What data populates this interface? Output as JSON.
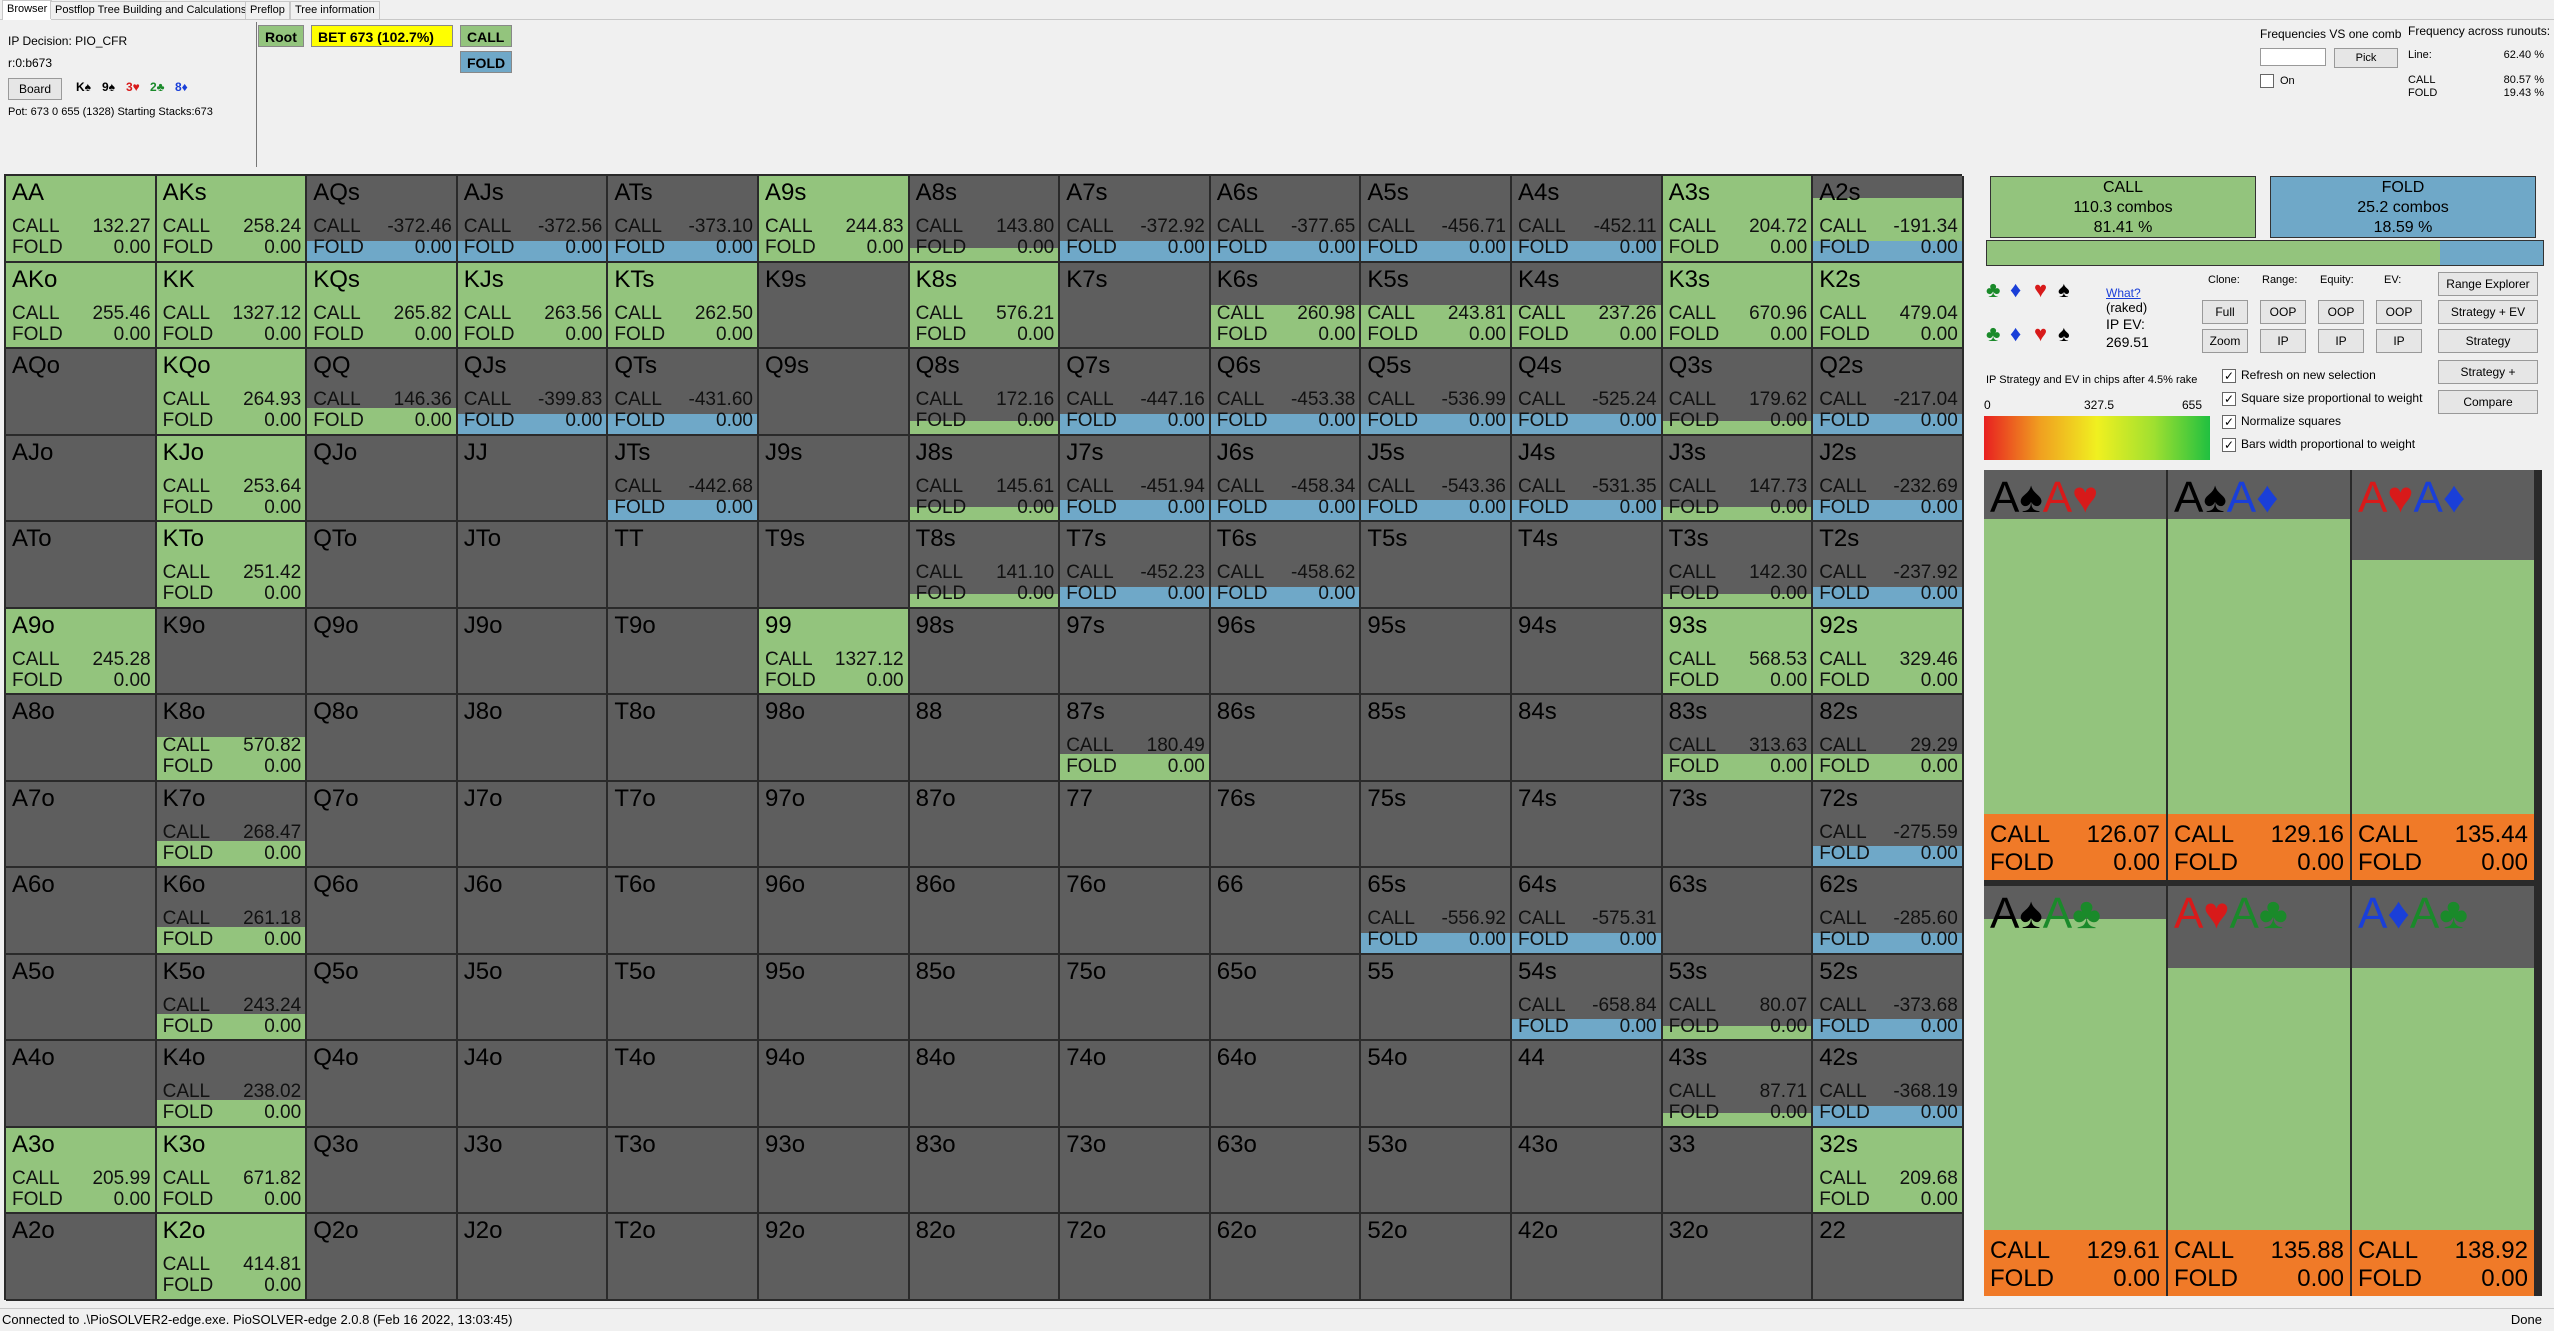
{
  "tabs": [
    "Browser",
    "Postflop Tree Building and Calculations",
    "Preflop",
    "Tree information"
  ],
  "info": {
    "decision": "IP Decision:  PIO_CFR",
    "node": "r:0:b673",
    "board_btn": "Board",
    "pot": "Pot: 673 0 655 (1328) Starting Stacks:673",
    "board": [
      {
        "rank": "K",
        "suit": "♠",
        "color": "#000"
      },
      {
        "rank": "9",
        "suit": "♠",
        "color": "#000"
      },
      {
        "rank": "3",
        "suit": "♥",
        "color": "#d81a1a"
      },
      {
        "rank": "2",
        "suit": "♣",
        "color": "#1a8a2a"
      },
      {
        "rank": "8",
        "suit": "♦",
        "color": "#1a3fd8"
      }
    ]
  },
  "tree": {
    "root": "Root",
    "bet": "BET 673 (102.7%)",
    "call": "CALL",
    "fold": "FOLD"
  },
  "freq": {
    "title": "Frequencies VS one comb",
    "pick": "Pick",
    "on": "On",
    "across_title": "Frequency across runouts:",
    "line_label": "Line:",
    "line_value": "62.40 %",
    "call_label": "CALL",
    "call_value": "80.57 %",
    "fold_label": "FOLD",
    "fold_value": "19.43 %"
  },
  "colors": {
    "call": "#93c47d",
    "fold": "#6fa8c8",
    "empty": "#5e5e5e",
    "pair_blocked": "#a6a6a6",
    "orange": "#f07a28"
  },
  "grid": [
    [
      "AA",
      "CALL",
      "132.27",
      "FOLD",
      "0.00",
      1,
      0
    ],
    [
      "AKs",
      "CALL",
      "258.24",
      "FOLD",
      "0.00",
      1,
      0
    ],
    [
      "AQs",
      "CALL",
      "-372.46",
      "FOLD",
      "0.00",
      0,
      1
    ],
    [
      "AJs",
      "CALL",
      "-372.56",
      "FOLD",
      "0.00",
      0,
      1
    ],
    [
      "ATs",
      "CALL",
      "-373.10",
      "FOLD",
      "0.00",
      0,
      1
    ],
    [
      "A9s",
      "CALL",
      "244.83",
      "FOLD",
      "0.00",
      1,
      0
    ],
    [
      "A8s",
      "CALL",
      "143.80",
      "FOLD",
      "0.00",
      0.15,
      0
    ],
    [
      "A7s",
      "CALL",
      "-372.92",
      "FOLD",
      "0.00",
      0,
      1
    ],
    [
      "A6s",
      "CALL",
      "-377.65",
      "FOLD",
      "0.00",
      0,
      1
    ],
    [
      "A5s",
      "CALL",
      "-456.71",
      "FOLD",
      "0.00",
      0,
      1
    ],
    [
      "A4s",
      "CALL",
      "-452.11",
      "FOLD",
      "0.00",
      0,
      1
    ],
    [
      "A3s",
      "CALL",
      "204.72",
      "FOLD",
      "0.00",
      1,
      0
    ],
    [
      "A2s",
      "CALL",
      "-191.34",
      "FOLD",
      "0.00",
      0.5,
      1
    ],
    [
      "AKo",
      "CALL",
      "255.46",
      "FOLD",
      "0.00",
      1,
      0
    ],
    [
      "KK",
      "CALL",
      "1327.12",
      "FOLD",
      "0.00",
      1,
      0
    ],
    [
      "KQs",
      "CALL",
      "265.82",
      "FOLD",
      "0.00",
      1,
      0
    ],
    [
      "KJs",
      "CALL",
      "263.56",
      "FOLD",
      "0.00",
      1,
      0
    ],
    [
      "KTs",
      "CALL",
      "262.50",
      "FOLD",
      "0.00",
      1,
      0
    ],
    [
      "K9s",
      "",
      "",
      "",
      "",
      0,
      0
    ],
    [
      "K8s",
      "CALL",
      "576.21",
      "FOLD",
      "0.00",
      1,
      0
    ],
    [
      "K7s",
      "",
      "",
      "",
      "",
      0,
      0
    ],
    [
      "K6s",
      "CALL",
      "260.98",
      "FOLD",
      "0.00",
      0.5,
      0
    ],
    [
      "K5s",
      "CALL",
      "243.81",
      "FOLD",
      "0.00",
      0.5,
      0
    ],
    [
      "K4s",
      "CALL",
      "237.26",
      "FOLD",
      "0.00",
      0.5,
      0
    ],
    [
      "K3s",
      "CALL",
      "670.96",
      "FOLD",
      "0.00",
      1,
      0
    ],
    [
      "K2s",
      "CALL",
      "479.04",
      "FOLD",
      "0.00",
      1,
      0
    ],
    [
      "AQo",
      "",
      "",
      "",
      "",
      0,
      0
    ],
    [
      "KQo",
      "CALL",
      "264.93",
      "FOLD",
      "0.00",
      1,
      0
    ],
    [
      "QQ",
      "CALL",
      "146.36",
      "FOLD",
      "0.00",
      0.3,
      0
    ],
    [
      "QJs",
      "CALL",
      "-399.83",
      "FOLD",
      "0.00",
      0,
      1
    ],
    [
      "QTs",
      "CALL",
      "-431.60",
      "FOLD",
      "0.00",
      0,
      1
    ],
    [
      "Q9s",
      "",
      "",
      "",
      "",
      0,
      0
    ],
    [
      "Q8s",
      "CALL",
      "172.16",
      "FOLD",
      "0.00",
      0.15,
      0
    ],
    [
      "Q7s",
      "CALL",
      "-447.16",
      "FOLD",
      "0.00",
      0,
      1
    ],
    [
      "Q6s",
      "CALL",
      "-453.38",
      "FOLD",
      "0.00",
      0,
      1
    ],
    [
      "Q5s",
      "CALL",
      "-536.99",
      "FOLD",
      "0.00",
      0,
      1
    ],
    [
      "Q4s",
      "CALL",
      "-525.24",
      "FOLD",
      "0.00",
      0,
      1
    ],
    [
      "Q3s",
      "CALL",
      "179.62",
      "FOLD",
      "0.00",
      0.15,
      0
    ],
    [
      "Q2s",
      "CALL",
      "-217.04",
      "FOLD",
      "0.00",
      0,
      1
    ],
    [
      "AJo",
      "",
      "",
      "",
      "",
      0,
      0
    ],
    [
      "KJo",
      "CALL",
      "253.64",
      "FOLD",
      "0.00",
      1,
      0
    ],
    [
      "QJo",
      "",
      "",
      "",
      "",
      0,
      0
    ],
    [
      "JJ",
      "",
      "",
      "",
      "",
      0,
      0
    ],
    [
      "JTs",
      "CALL",
      "-442.68",
      "FOLD",
      "0.00",
      0,
      1
    ],
    [
      "J9s",
      "",
      "",
      "",
      "",
      0,
      0
    ],
    [
      "J8s",
      "CALL",
      "145.61",
      "FOLD",
      "0.00",
      0.15,
      0
    ],
    [
      "J7s",
      "CALL",
      "-451.94",
      "FOLD",
      "0.00",
      0,
      1
    ],
    [
      "J6s",
      "CALL",
      "-458.34",
      "FOLD",
      "0.00",
      0,
      1
    ],
    [
      "J5s",
      "CALL",
      "-543.36",
      "FOLD",
      "0.00",
      0,
      1
    ],
    [
      "J4s",
      "CALL",
      "-531.35",
      "FOLD",
      "0.00",
      0,
      1
    ],
    [
      "J3s",
      "CALL",
      "147.73",
      "FOLD",
      "0.00",
      0.15,
      0
    ],
    [
      "J2s",
      "CALL",
      "-232.69",
      "FOLD",
      "0.00",
      0,
      1
    ],
    [
      "ATo",
      "",
      "",
      "",
      "",
      0,
      0
    ],
    [
      "KTo",
      "CALL",
      "251.42",
      "FOLD",
      "0.00",
      1,
      0
    ],
    [
      "QTo",
      "",
      "",
      "",
      "",
      0,
      0
    ],
    [
      "JTo",
      "",
      "",
      "",
      "",
      0,
      0
    ],
    [
      "TT",
      "",
      "",
      "",
      "",
      0,
      0
    ],
    [
      "T9s",
      "",
      "",
      "",
      "",
      0,
      0
    ],
    [
      "T8s",
      "CALL",
      "141.10",
      "FOLD",
      "0.00",
      0.15,
      0
    ],
    [
      "T7s",
      "CALL",
      "-452.23",
      "FOLD",
      "0.00",
      0,
      1
    ],
    [
      "T6s",
      "CALL",
      "-458.62",
      "FOLD",
      "0.00",
      0,
      1
    ],
    [
      "T5s",
      "",
      "",
      "",
      "",
      0,
      0
    ],
    [
      "T4s",
      "",
      "",
      "",
      "",
      0,
      0
    ],
    [
      "T3s",
      "CALL",
      "142.30",
      "FOLD",
      "0.00",
      0.15,
      0
    ],
    [
      "T2s",
      "CALL",
      "-237.92",
      "FOLD",
      "0.00",
      0,
      1
    ],
    [
      "A9o",
      "CALL",
      "245.28",
      "FOLD",
      "0.00",
      1,
      0
    ],
    [
      "K9o",
      "",
      "",
      "",
      "",
      0,
      0
    ],
    [
      "Q9o",
      "",
      "",
      "",
      "",
      0,
      0
    ],
    [
      "J9o",
      "",
      "",
      "",
      "",
      0,
      0
    ],
    [
      "T9o",
      "",
      "",
      "",
      "",
      0,
      0
    ],
    [
      "99",
      "CALL",
      "1327.12",
      "FOLD",
      "0.00",
      1,
      0
    ],
    [
      "98s",
      "",
      "",
      "",
      "",
      0,
      0
    ],
    [
      "97s",
      "",
      "",
      "",
      "",
      0,
      0
    ],
    [
      "96s",
      "",
      "",
      "",
      "",
      0,
      0
    ],
    [
      "95s",
      "",
      "",
      "",
      "",
      0,
      0
    ],
    [
      "94s",
      "",
      "",
      "",
      "",
      0,
      0
    ],
    [
      "93s",
      "CALL",
      "568.53",
      "FOLD",
      "0.00",
      1,
      0
    ],
    [
      "92s",
      "CALL",
      "329.46",
      "FOLD",
      "0.00",
      1,
      0
    ],
    [
      "A8o",
      "",
      "",
      "",
      "",
      0,
      0
    ],
    [
      "K8o",
      "CALL",
      "570.82",
      "FOLD",
      "0.00",
      0.5,
      0
    ],
    [
      "Q8o",
      "",
      "",
      "",
      "",
      0,
      0
    ],
    [
      "J8o",
      "",
      "",
      "",
      "",
      0,
      0
    ],
    [
      "T8o",
      "",
      "",
      "",
      "",
      0,
      0
    ],
    [
      "98o",
      "",
      "",
      "",
      "",
      0,
      0
    ],
    [
      "88",
      "",
      "",
      "",
      "",
      0,
      0
    ],
    [
      "87s",
      "CALL",
      "180.49",
      "FOLD",
      "0.00",
      0.3,
      0
    ],
    [
      "86s",
      "",
      "",
      "",
      "",
      0,
      0
    ],
    [
      "85s",
      "",
      "",
      "",
      "",
      0,
      0
    ],
    [
      "84s",
      "",
      "",
      "",
      "",
      0,
      0
    ],
    [
      "83s",
      "CALL",
      "313.63",
      "FOLD",
      "0.00",
      0.3,
      0
    ],
    [
      "82s",
      "CALL",
      "29.29",
      "FOLD",
      "0.00",
      0.3,
      0
    ],
    [
      "A7o",
      "",
      "",
      "",
      "",
      0,
      0
    ],
    [
      "K7o",
      "CALL",
      "268.47",
      "FOLD",
      "0.00",
      0.3,
      0
    ],
    [
      "Q7o",
      "",
      "",
      "",
      "",
      0,
      0
    ],
    [
      "J7o",
      "",
      "",
      "",
      "",
      0,
      0
    ],
    [
      "T7o",
      "",
      "",
      "",
      "",
      0,
      0
    ],
    [
      "97o",
      "",
      "",
      "",
      "",
      0,
      0
    ],
    [
      "87o",
      "",
      "",
      "",
      "",
      0,
      0
    ],
    [
      "77",
      "",
      "",
      "",
      "",
      0,
      0
    ],
    [
      "76s",
      "",
      "",
      "",
      "",
      0,
      0
    ],
    [
      "75s",
      "",
      "",
      "",
      "",
      0,
      0
    ],
    [
      "74s",
      "",
      "",
      "",
      "",
      0,
      0
    ],
    [
      "73s",
      "",
      "",
      "",
      "",
      0,
      0
    ],
    [
      "72s",
      "CALL",
      "-275.59",
      "FOLD",
      "0.00",
      0,
      1
    ],
    [
      "A6o",
      "",
      "",
      "",
      "",
      0,
      0
    ],
    [
      "K6o",
      "CALL",
      "261.18",
      "FOLD",
      "0.00",
      0.3,
      0
    ],
    [
      "Q6o",
      "",
      "",
      "",
      "",
      0,
      0
    ],
    [
      "J6o",
      "",
      "",
      "",
      "",
      0,
      0
    ],
    [
      "T6o",
      "",
      "",
      "",
      "",
      0,
      0
    ],
    [
      "96o",
      "",
      "",
      "",
      "",
      0,
      0
    ],
    [
      "86o",
      "",
      "",
      "",
      "",
      0,
      0
    ],
    [
      "76o",
      "",
      "",
      "",
      "",
      0,
      0
    ],
    [
      "66",
      "",
      "",
      "",
      "",
      0,
      0
    ],
    [
      "65s",
      "CALL",
      "-556.92",
      "FOLD",
      "0.00",
      0,
      1
    ],
    [
      "64s",
      "CALL",
      "-575.31",
      "FOLD",
      "0.00",
      0,
      1
    ],
    [
      "63s",
      "",
      "",
      "",
      "",
      0,
      0
    ],
    [
      "62s",
      "CALL",
      "-285.60",
      "FOLD",
      "0.00",
      0,
      1
    ],
    [
      "A5o",
      "",
      "",
      "",
      "",
      0,
      0
    ],
    [
      "K5o",
      "CALL",
      "243.24",
      "FOLD",
      "0.00",
      0.3,
      0
    ],
    [
      "Q5o",
      "",
      "",
      "",
      "",
      0,
      0
    ],
    [
      "J5o",
      "",
      "",
      "",
      "",
      0,
      0
    ],
    [
      "T5o",
      "",
      "",
      "",
      "",
      0,
      0
    ],
    [
      "95o",
      "",
      "",
      "",
      "",
      0,
      0
    ],
    [
      "85o",
      "",
      "",
      "",
      "",
      0,
      0
    ],
    [
      "75o",
      "",
      "",
      "",
      "",
      0,
      0
    ],
    [
      "65o",
      "",
      "",
      "",
      "",
      0,
      0
    ],
    [
      "55",
      "",
      "",
      "",
      "",
      0,
      0
    ],
    [
      "54s",
      "CALL",
      "-658.84",
      "FOLD",
      "0.00",
      0,
      1
    ],
    [
      "53s",
      "CALL",
      "80.07",
      "FOLD",
      "0.00",
      0.15,
      0
    ],
    [
      "52s",
      "CALL",
      "-373.68",
      "FOLD",
      "0.00",
      0,
      1
    ],
    [
      "A4o",
      "",
      "",
      "",
      "",
      0,
      0
    ],
    [
      "K4o",
      "CALL",
      "238.02",
      "FOLD",
      "0.00",
      0.3,
      0
    ],
    [
      "Q4o",
      "",
      "",
      "",
      "",
      0,
      0
    ],
    [
      "J4o",
      "",
      "",
      "",
      "",
      0,
      0
    ],
    [
      "T4o",
      "",
      "",
      "",
      "",
      0,
      0
    ],
    [
      "94o",
      "",
      "",
      "",
      "",
      0,
      0
    ],
    [
      "84o",
      "",
      "",
      "",
      "",
      0,
      0
    ],
    [
      "74o",
      "",
      "",
      "",
      "",
      0,
      0
    ],
    [
      "64o",
      "",
      "",
      "",
      "",
      0,
      0
    ],
    [
      "54o",
      "",
      "",
      "",
      "",
      0,
      0
    ],
    [
      "44",
      "",
      "",
      "",
      "",
      0,
      0
    ],
    [
      "43s",
      "CALL",
      "87.71",
      "FOLD",
      "0.00",
      0.15,
      0
    ],
    [
      "42s",
      "CALL",
      "-368.19",
      "FOLD",
      "0.00",
      0,
      1
    ],
    [
      "A3o",
      "CALL",
      "205.99",
      "FOLD",
      "0.00",
      1,
      0
    ],
    [
      "K3o",
      "CALL",
      "671.82",
      "FOLD",
      "0.00",
      1,
      0
    ],
    [
      "Q3o",
      "",
      "",
      "",
      "",
      0,
      0
    ],
    [
      "J3o",
      "",
      "",
      "",
      "",
      0,
      0
    ],
    [
      "T3o",
      "",
      "",
      "",
      "",
      0,
      0
    ],
    [
      "93o",
      "",
      "",
      "",
      "",
      0,
      0
    ],
    [
      "83o",
      "",
      "",
      "",
      "",
      0,
      0
    ],
    [
      "73o",
      "",
      "",
      "",
      "",
      0,
      0
    ],
    [
      "63o",
      "",
      "",
      "",
      "",
      0,
      0
    ],
    [
      "53o",
      "",
      "",
      "",
      "",
      0,
      0
    ],
    [
      "43o",
      "",
      "",
      "",
      "",
      0,
      0
    ],
    [
      "33",
      "",
      "",
      "",
      "",
      0,
      0
    ],
    [
      "32s",
      "CALL",
      "209.68",
      "FOLD",
      "0.00",
      1,
      0
    ],
    [
      "A2o",
      "",
      "",
      "",
      "",
      0,
      0
    ],
    [
      "K2o",
      "CALL",
      "414.81",
      "FOLD",
      "0.00",
      1,
      0
    ],
    [
      "Q2o",
      "",
      "",
      "",
      "",
      0,
      0
    ],
    [
      "J2o",
      "",
      "",
      "",
      "",
      0,
      0
    ],
    [
      "T2o",
      "",
      "",
      "",
      "",
      0,
      0
    ],
    [
      "92o",
      "",
      "",
      "",
      "",
      0,
      0
    ],
    [
      "82o",
      "",
      "",
      "",
      "",
      0,
      0
    ],
    [
      "72o",
      "",
      "",
      "",
      "",
      0,
      0
    ],
    [
      "62o",
      "",
      "",
      "",
      "",
      0,
      0
    ],
    [
      "52o",
      "",
      "",
      "",
      "",
      0,
      0
    ],
    [
      "42o",
      "",
      "",
      "",
      "",
      0,
      0
    ],
    [
      "32o",
      "",
      "",
      "",
      "",
      0,
      0
    ],
    [
      "22",
      "",
      "",
      "",
      "",
      0,
      0
    ]
  ],
  "summary": {
    "call_label": "CALL",
    "call_combos": "110.3 combos",
    "call_pct": "81.41 %",
    "fold_label": "FOLD",
    "fold_combos": "25.2 combos",
    "fold_pct": "18.59 %",
    "call_fraction": 0.8141
  },
  "controls": {
    "what": "What?",
    "raked": "(raked)",
    "ev_label": "IP EV:",
    "ev_value": "269.51",
    "clone": "Clone:",
    "range": "Range:",
    "equity": "Equity:",
    "ev": "EV:",
    "full": "Full",
    "zoom": "Zoom",
    "oop1": "OOP",
    "ip1": "IP",
    "oop2": "OOP",
    "ip2": "IP",
    "oop3": "OOP",
    "ip3": "IP",
    "range_explorer": "Range Explorer",
    "strategy_ev": "Strategy + EV",
    "strategy": "Strategy",
    "strategy_plus": "Strategy +",
    "compare": "Compare",
    "strat_text": "IP Strategy and EV in chips after 4.5% rake",
    "grad_min": "0",
    "grad_mid": "327.5",
    "grad_max": "655",
    "refresh": "Refresh on new selection",
    "square_size": "Square size proportional to weight",
    "normalize": "Normalize squares",
    "bars_width": "Bars width proportional to weight"
  },
  "combos": [
    {
      "r1": "A",
      "s1": "♠",
      "c1": "sp",
      "r2": "A",
      "s2": "♥",
      "c2": "he",
      "call": "126.07",
      "fold": "0.00",
      "grey": 0.12
    },
    {
      "r1": "A",
      "s1": "♠",
      "c1": "sp",
      "r2": "A",
      "s2": "♦",
      "c2": "di",
      "call": "129.16",
      "fold": "0.00",
      "grey": 0.12
    },
    {
      "r1": "A",
      "s1": "♥",
      "c1": "he",
      "r2": "A",
      "s2": "♦",
      "c2": "di",
      "call": "135.44",
      "fold": "0.00",
      "grey": 0.22
    },
    {
      "r1": "A",
      "s1": "♠",
      "c1": "sp",
      "r2": "A",
      "s2": "♣",
      "c2": "cl",
      "call": "129.61",
      "fold": "0.00",
      "grey": 0.08
    },
    {
      "r1": "A",
      "s1": "♥",
      "c1": "he",
      "r2": "A",
      "s2": "♣",
      "c2": "cl",
      "call": "135.88",
      "fold": "0.00",
      "grey": 0.2
    },
    {
      "r1": "A",
      "s1": "♦",
      "c1": "di",
      "r2": "A",
      "s2": "♣",
      "c2": "cl",
      "call": "138.92",
      "fold": "0.00",
      "grey": 0.2
    }
  ],
  "status": {
    "left": "Connected to .\\PioSOLVER2-edge.exe. PioSOLVER-edge 2.0.8 (Feb 16 2022, 13:03:45)",
    "right": "Done"
  }
}
